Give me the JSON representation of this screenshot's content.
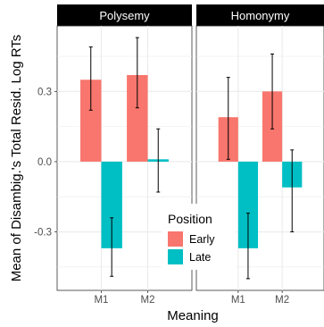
{
  "chart_data": {
    "type": "bar",
    "facets": [
      "Polysemy",
      "Homonymy"
    ],
    "categories": [
      "M1",
      "M2"
    ],
    "series": [
      {
        "name": "Early",
        "color": "#F8766D",
        "values": {
          "Polysemy": [
            0.35,
            0.37
          ],
          "Homonymy": [
            0.19,
            0.3
          ]
        },
        "errors": {
          "Polysemy": [
            [
              0.22,
              0.49
            ],
            [
              0.23,
              0.53
            ]
          ],
          "Homonymy": [
            [
              0.01,
              0.36
            ],
            [
              0.14,
              0.46
            ]
          ]
        }
      },
      {
        "name": "Late",
        "color": "#00BFC4",
        "values": {
          "Polysemy": [
            -0.37,
            0.01
          ],
          "Homonymy": [
            -0.37,
            -0.11
          ]
        },
        "errors": {
          "Polysemy": [
            [
              -0.49,
              -0.24
            ],
            [
              -0.13,
              0.14
            ]
          ],
          "Homonymy": [
            [
              -0.5,
              -0.22
            ],
            [
              -0.3,
              0.05
            ]
          ]
        }
      }
    ],
    "xlabel": "Meaning",
    "ylabel": "Mean of Disambig.'s Total Resid. Log RTs",
    "yticks": [
      -0.3,
      0.0,
      0.3
    ],
    "ytick_labels": [
      "-0.3",
      "0.0",
      "0.3"
    ],
    "ylim": [
      -0.55,
      0.58
    ],
    "legend": {
      "title": "Position",
      "position": "bottom-center",
      "entries": [
        "Early",
        "Late"
      ]
    },
    "grid": true
  }
}
